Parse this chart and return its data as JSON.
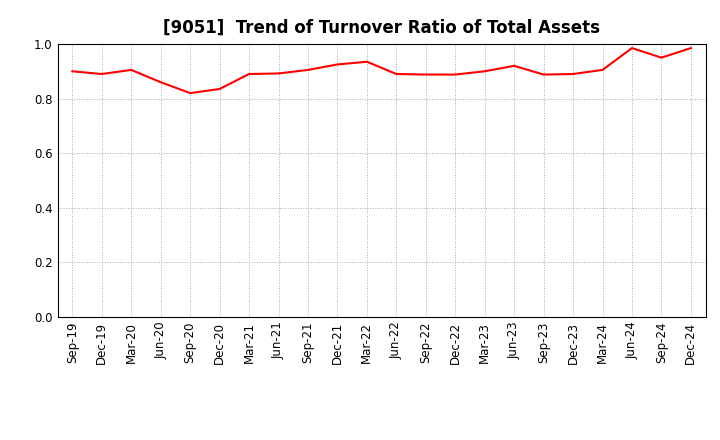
{
  "title": "[9051]  Trend of Turnover Ratio of Total Assets",
  "x_labels": [
    "Sep-19",
    "Dec-19",
    "Mar-20",
    "Jun-20",
    "Sep-20",
    "Dec-20",
    "Mar-21",
    "Jun-21",
    "Sep-21",
    "Dec-21",
    "Mar-22",
    "Jun-22",
    "Sep-22",
    "Dec-22",
    "Mar-23",
    "Jun-23",
    "Sep-23",
    "Dec-23",
    "Mar-24",
    "Jun-24",
    "Sep-24",
    "Dec-24"
  ],
  "values": [
    0.9,
    0.89,
    0.905,
    0.86,
    0.82,
    0.835,
    0.89,
    0.892,
    0.905,
    0.925,
    0.935,
    0.89,
    0.888,
    0.888,
    0.9,
    0.92,
    0.888,
    0.89,
    0.905,
    0.985,
    0.95,
    0.985
  ],
  "line_color": "#FF0000",
  "line_width": 1.5,
  "ylim": [
    0.0,
    1.0
  ],
  "yticks": [
    0.0,
    0.2,
    0.4,
    0.6,
    0.8,
    1.0
  ],
  "background_color": "#FFFFFF",
  "grid_color": "#AAAAAA",
  "title_fontsize": 12,
  "tick_fontsize": 8.5
}
